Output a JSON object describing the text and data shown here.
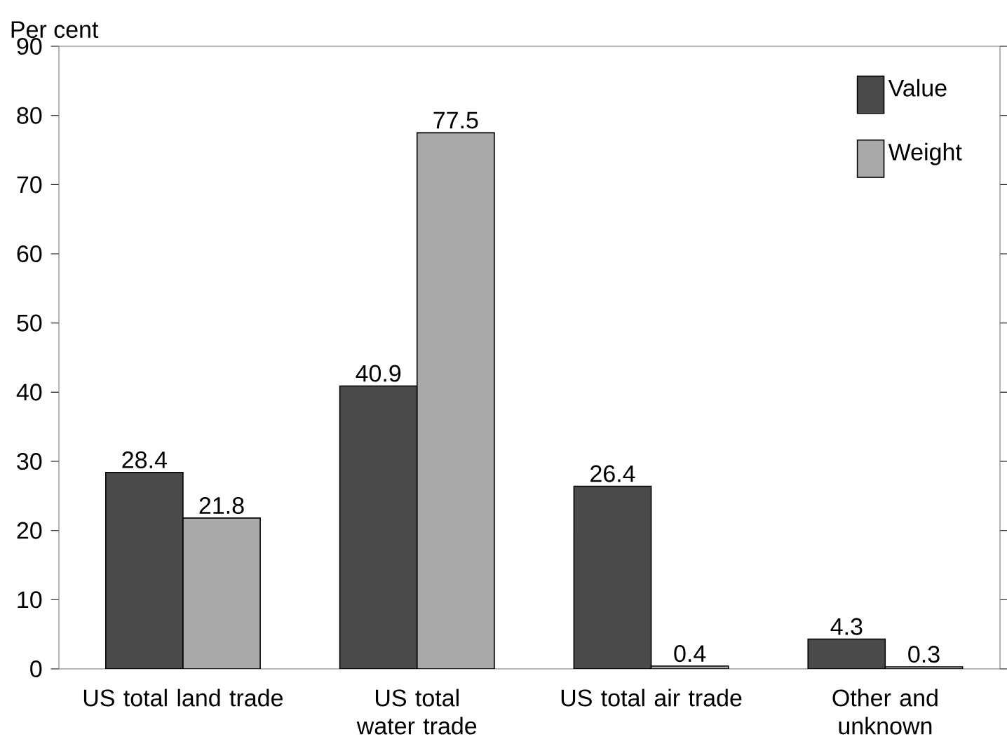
{
  "chart_data": {
    "type": "bar",
    "ylabel": "Per cent",
    "categories": [
      "US total land trade",
      "US total water trade",
      "US total air trade",
      "Other and unknown"
    ],
    "series": [
      {
        "name": "Value",
        "color": "#4a4a4a",
        "values": [
          28.4,
          40.9,
          26.4,
          4.3
        ]
      },
      {
        "name": "Weight",
        "color": "#a9a9a9",
        "values": [
          21.8,
          77.5,
          0.4,
          0.3
        ]
      }
    ],
    "ylim": [
      0,
      90
    ],
    "yticks": [
      0,
      10,
      20,
      30,
      40,
      50,
      60,
      70,
      80,
      90
    ],
    "data_labels": true,
    "legend": "top right"
  }
}
